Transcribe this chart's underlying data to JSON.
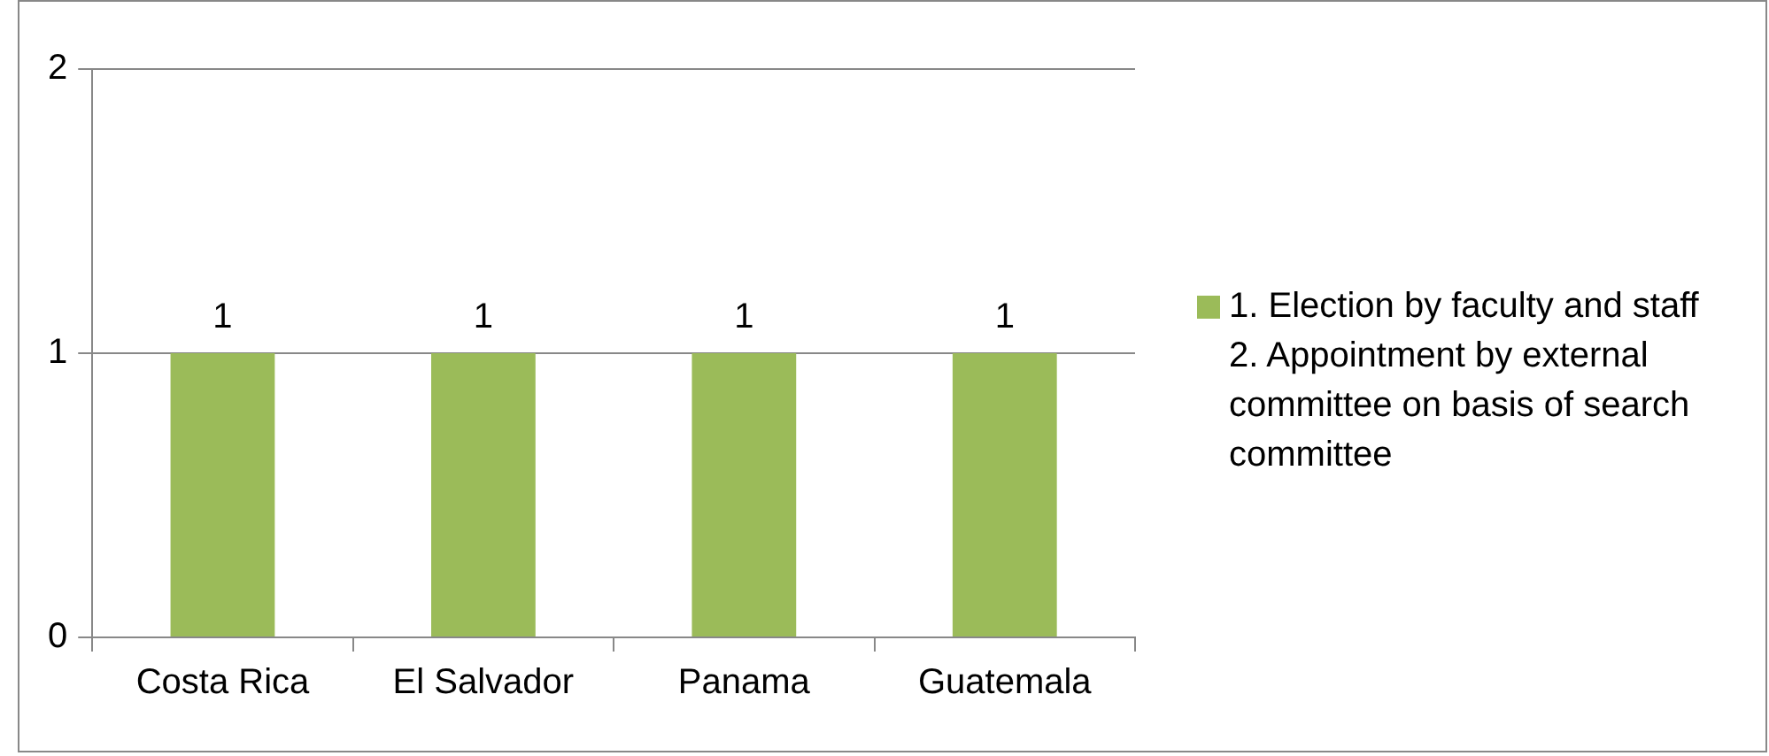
{
  "chart_data": {
    "type": "bar",
    "categories": [
      "Costa Rica",
      "El Salvador",
      "Panama",
      "Guatemala"
    ],
    "series": [
      {
        "name": "1. Election by faculty and staff 2.  Appointment by external committee on basis of search committee",
        "color": "#9bbb59",
        "values": [
          1,
          1,
          1,
          1
        ]
      }
    ],
    "ylim": [
      0,
      2
    ],
    "yticks": [
      0,
      1,
      2
    ],
    "grid": "y",
    "legend": "right",
    "data_labels": true
  }
}
